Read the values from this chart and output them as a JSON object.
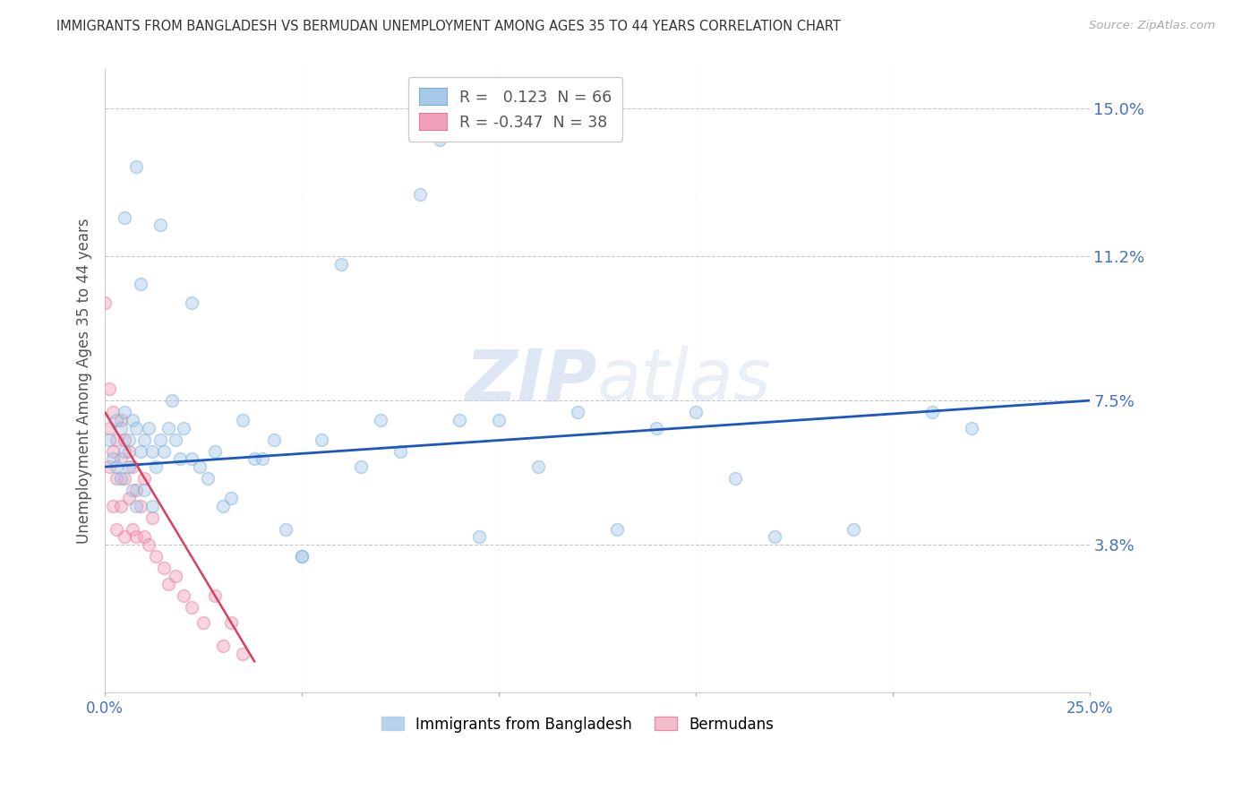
{
  "title": "IMMIGRANTS FROM BANGLADESH VS BERMUDAN UNEMPLOYMENT AMONG AGES 35 TO 44 YEARS CORRELATION CHART",
  "source": "Source: ZipAtlas.com",
  "ylabel": "Unemployment Among Ages 35 to 44 years",
  "xlim": [
    0.0,
    0.25
  ],
  "ylim": [
    0.0,
    0.16
  ],
  "xticks": [
    0.0,
    0.05,
    0.1,
    0.15,
    0.2,
    0.25
  ],
  "xticklabels": [
    "0.0%",
    "",
    "",
    "",
    "",
    "25.0%"
  ],
  "ytick_right_labels": [
    "15.0%",
    "11.2%",
    "7.5%",
    "3.8%"
  ],
  "ytick_right_values": [
    0.15,
    0.112,
    0.075,
    0.038
  ],
  "watermark": "ZIPatlas",
  "legend_r1": "0.123",
  "legend_n1": "66",
  "legend_r2": "-0.347",
  "legend_n2": "38",
  "blue_scatter_x": [
    0.001,
    0.002,
    0.003,
    0.003,
    0.004,
    0.004,
    0.005,
    0.005,
    0.006,
    0.006,
    0.007,
    0.007,
    0.008,
    0.008,
    0.009,
    0.009,
    0.01,
    0.01,
    0.011,
    0.012,
    0.012,
    0.013,
    0.014,
    0.015,
    0.016,
    0.017,
    0.018,
    0.019,
    0.02,
    0.022,
    0.024,
    0.026,
    0.028,
    0.03,
    0.032,
    0.035,
    0.038,
    0.04,
    0.043,
    0.046,
    0.05,
    0.055,
    0.06,
    0.065,
    0.07,
    0.075,
    0.08,
    0.085,
    0.09,
    0.095,
    0.1,
    0.11,
    0.12,
    0.13,
    0.14,
    0.15,
    0.16,
    0.17,
    0.19,
    0.21,
    0.22,
    0.005,
    0.008,
    0.014,
    0.022,
    0.05
  ],
  "blue_scatter_y": [
    0.065,
    0.06,
    0.07,
    0.058,
    0.068,
    0.055,
    0.072,
    0.062,
    0.065,
    0.058,
    0.07,
    0.052,
    0.068,
    0.048,
    0.105,
    0.062,
    0.065,
    0.052,
    0.068,
    0.062,
    0.048,
    0.058,
    0.065,
    0.062,
    0.068,
    0.075,
    0.065,
    0.06,
    0.068,
    0.06,
    0.058,
    0.055,
    0.062,
    0.048,
    0.05,
    0.07,
    0.06,
    0.06,
    0.065,
    0.042,
    0.035,
    0.065,
    0.11,
    0.058,
    0.07,
    0.062,
    0.128,
    0.142,
    0.07,
    0.04,
    0.07,
    0.058,
    0.072,
    0.042,
    0.068,
    0.072,
    0.055,
    0.04,
    0.042,
    0.072,
    0.068,
    0.122,
    0.135,
    0.12,
    0.1,
    0.035
  ],
  "pink_scatter_x": [
    0.0,
    0.001,
    0.001,
    0.001,
    0.002,
    0.002,
    0.002,
    0.003,
    0.003,
    0.003,
    0.004,
    0.004,
    0.004,
    0.005,
    0.005,
    0.005,
    0.006,
    0.006,
    0.007,
    0.007,
    0.008,
    0.008,
    0.009,
    0.01,
    0.01,
    0.011,
    0.012,
    0.013,
    0.015,
    0.016,
    0.018,
    0.02,
    0.022,
    0.025,
    0.028,
    0.03,
    0.032,
    0.035
  ],
  "pink_scatter_y": [
    0.1,
    0.078,
    0.068,
    0.058,
    0.072,
    0.062,
    0.048,
    0.065,
    0.055,
    0.042,
    0.07,
    0.06,
    0.048,
    0.065,
    0.055,
    0.04,
    0.062,
    0.05,
    0.058,
    0.042,
    0.052,
    0.04,
    0.048,
    0.055,
    0.04,
    0.038,
    0.045,
    0.035,
    0.032,
    0.028,
    0.03,
    0.025,
    0.022,
    0.018,
    0.025,
    0.012,
    0.018,
    0.01
  ],
  "blue_line_x": [
    0.0,
    0.25
  ],
  "blue_line_y": [
    0.058,
    0.075
  ],
  "pink_line_x": [
    0.0,
    0.038
  ],
  "pink_line_y": [
    0.072,
    0.008
  ],
  "scatter_size": 100,
  "scatter_alpha": 0.45,
  "blue_color": "#a8c8e8",
  "pink_color": "#f0a0b8",
  "blue_scatter_edge": "#7bafd4",
  "pink_scatter_edge": "#e87898",
  "blue_line_color": "#1a56c4",
  "pink_line_color": "#d84060",
  "title_color": "#333333",
  "axis_label_color": "#555555",
  "tick_color_right": "#4472c4",
  "grid_color": "#c8c8c8",
  "background_color": "#ffffff",
  "legend_box_color_blue": "#a8c8e8",
  "legend_box_color_pink": "#f0a0b8",
  "bottom_legend": [
    "Immigrants from Bangladesh",
    "Bermudans"
  ],
  "bottom_legend_colors": [
    "#a8c8e8",
    "#f0b0c0"
  ]
}
